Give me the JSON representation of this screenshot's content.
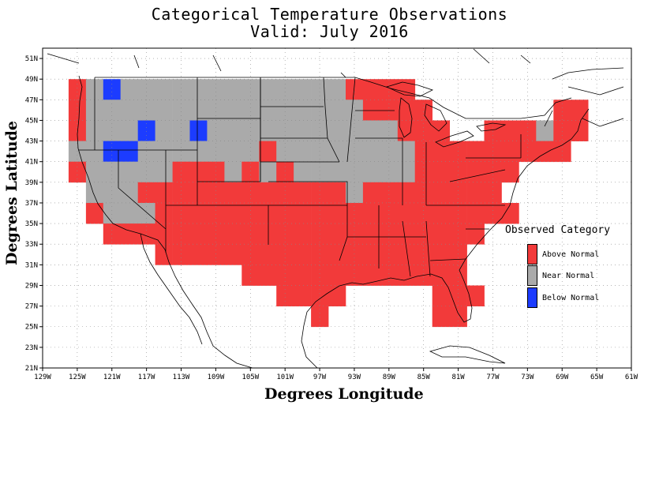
{
  "title": "Categorical Temperature Observations",
  "subtitle": "Valid: July 2016",
  "axes": {
    "xlabel": "Degrees Longitude",
    "ylabel": "Degrees Latitude",
    "lon_ticks": [
      "129W",
      "125W",
      "121W",
      "117W",
      "113W",
      "109W",
      "105W",
      "101W",
      "97W",
      "93W",
      "89W",
      "85W",
      "81W",
      "77W",
      "73W",
      "69W",
      "65W",
      "61W"
    ],
    "lat_ticks": [
      "51N",
      "49N",
      "47N",
      "45N",
      "43N",
      "41N",
      "39N",
      "37N",
      "35N",
      "33N",
      "31N",
      "29N",
      "27N",
      "25N",
      "23N",
      "21N"
    ],
    "lon_range": [
      -129,
      -61
    ],
    "lat_range": [
      21,
      52
    ]
  },
  "legend": {
    "title": "Observed Category",
    "items": [
      {
        "label": "Above Normal",
        "color": "#f23a3a"
      },
      {
        "label": "Near Normal",
        "color": "#aaaaaa"
      },
      {
        "label": "Below Normal",
        "color": "#1c3cff"
      }
    ]
  },
  "chart_data": {
    "type": "heatmap",
    "title": "Categorical Temperature Observations",
    "subtitle": "Valid: July 2016",
    "xlabel": "Degrees Longitude",
    "ylabel": "Degrees Latitude",
    "xlim": [
      -129,
      -61
    ],
    "ylim": [
      21,
      52
    ],
    "grid": true,
    "cell_size_degrees": 2,
    "category_codes": {
      "A": "Above Normal",
      "N": "Near Normal",
      "B": "Below Normal"
    },
    "rows": [
      {
        "lat": 48,
        "cells": [
          [
            -125,
            "A"
          ],
          [
            -123,
            "N"
          ],
          [
            -121,
            "B"
          ],
          [
            -119,
            "N"
          ],
          [
            -117,
            "N"
          ],
          [
            -115,
            "N"
          ],
          [
            -113,
            "N"
          ],
          [
            -111,
            "N"
          ],
          [
            -109,
            "N"
          ],
          [
            -107,
            "N"
          ],
          [
            -105,
            "N"
          ],
          [
            -103,
            "N"
          ],
          [
            -101,
            "N"
          ],
          [
            -99,
            "N"
          ],
          [
            -97,
            "N"
          ],
          [
            -95,
            "N"
          ],
          [
            -93,
            "A"
          ],
          [
            -91,
            "A"
          ],
          [
            -89,
            "A"
          ],
          [
            -87,
            "A"
          ]
        ]
      },
      {
        "lat": 46,
        "cells": [
          [
            -125,
            "A"
          ],
          [
            -123,
            "N"
          ],
          [
            -121,
            "N"
          ],
          [
            -119,
            "N"
          ],
          [
            -117,
            "N"
          ],
          [
            -115,
            "N"
          ],
          [
            -113,
            "N"
          ],
          [
            -111,
            "N"
          ],
          [
            -109,
            "N"
          ],
          [
            -107,
            "N"
          ],
          [
            -105,
            "N"
          ],
          [
            -103,
            "N"
          ],
          [
            -101,
            "N"
          ],
          [
            -99,
            "N"
          ],
          [
            -97,
            "N"
          ],
          [
            -95,
            "N"
          ],
          [
            -93,
            "N"
          ],
          [
            -91,
            "A"
          ],
          [
            -89,
            "A"
          ],
          [
            -87,
            "A"
          ],
          [
            -85,
            "A"
          ],
          [
            -69,
            "A"
          ],
          [
            -67,
            "A"
          ]
        ]
      },
      {
        "lat": 44,
        "cells": [
          [
            -125,
            "A"
          ],
          [
            -123,
            "N"
          ],
          [
            -121,
            "N"
          ],
          [
            -119,
            "N"
          ],
          [
            -117,
            "B"
          ],
          [
            -115,
            "N"
          ],
          [
            -113,
            "N"
          ],
          [
            -111,
            "B"
          ],
          [
            -109,
            "N"
          ],
          [
            -107,
            "N"
          ],
          [
            -105,
            "N"
          ],
          [
            -103,
            "N"
          ],
          [
            -101,
            "N"
          ],
          [
            -99,
            "N"
          ],
          [
            -97,
            "N"
          ],
          [
            -95,
            "N"
          ],
          [
            -93,
            "N"
          ],
          [
            -91,
            "N"
          ],
          [
            -89,
            "N"
          ],
          [
            -87,
            "A"
          ],
          [
            -85,
            "A"
          ],
          [
            -83,
            "A"
          ],
          [
            -77,
            "A"
          ],
          [
            -75,
            "A"
          ],
          [
            -73,
            "A"
          ],
          [
            -71,
            "N"
          ],
          [
            -69,
            "A"
          ],
          [
            -67,
            "A"
          ]
        ]
      },
      {
        "lat": 42,
        "cells": [
          [
            -125,
            "N"
          ],
          [
            -123,
            "N"
          ],
          [
            -121,
            "B"
          ],
          [
            -119,
            "B"
          ],
          [
            -117,
            "N"
          ],
          [
            -115,
            "N"
          ],
          [
            -113,
            "N"
          ],
          [
            -111,
            "N"
          ],
          [
            -109,
            "N"
          ],
          [
            -107,
            "N"
          ],
          [
            -105,
            "N"
          ],
          [
            -103,
            "A"
          ],
          [
            -101,
            "N"
          ],
          [
            -99,
            "N"
          ],
          [
            -97,
            "N"
          ],
          [
            -95,
            "N"
          ],
          [
            -93,
            "N"
          ],
          [
            -91,
            "N"
          ],
          [
            -89,
            "N"
          ],
          [
            -87,
            "N"
          ],
          [
            -85,
            "A"
          ],
          [
            -83,
            "A"
          ],
          [
            -81,
            "A"
          ],
          [
            -79,
            "A"
          ],
          [
            -77,
            "A"
          ],
          [
            -75,
            "A"
          ],
          [
            -73,
            "A"
          ],
          [
            -71,
            "A"
          ],
          [
            -69,
            "A"
          ]
        ]
      },
      {
        "lat": 40,
        "cells": [
          [
            -125,
            "A"
          ],
          [
            -123,
            "N"
          ],
          [
            -121,
            "N"
          ],
          [
            -119,
            "N"
          ],
          [
            -117,
            "N"
          ],
          [
            -115,
            "N"
          ],
          [
            -113,
            "A"
          ],
          [
            -111,
            "A"
          ],
          [
            -109,
            "A"
          ],
          [
            -107,
            "N"
          ],
          [
            -105,
            "A"
          ],
          [
            -103,
            "N"
          ],
          [
            -101,
            "A"
          ],
          [
            -99,
            "N"
          ],
          [
            -97,
            "N"
          ],
          [
            -95,
            "N"
          ],
          [
            -93,
            "N"
          ],
          [
            -91,
            "N"
          ],
          [
            -89,
            "N"
          ],
          [
            -87,
            "N"
          ],
          [
            -85,
            "A"
          ],
          [
            -83,
            "A"
          ],
          [
            -81,
            "A"
          ],
          [
            -79,
            "A"
          ],
          [
            -77,
            "A"
          ],
          [
            -75,
            "A"
          ]
        ]
      },
      {
        "lat": 38,
        "cells": [
          [
            -123,
            "N"
          ],
          [
            -121,
            "N"
          ],
          [
            -119,
            "N"
          ],
          [
            -117,
            "A"
          ],
          [
            -115,
            "A"
          ],
          [
            -113,
            "A"
          ],
          [
            -111,
            "A"
          ],
          [
            -109,
            "A"
          ],
          [
            -107,
            "A"
          ],
          [
            -105,
            "A"
          ],
          [
            -103,
            "A"
          ],
          [
            -101,
            "A"
          ],
          [
            -99,
            "A"
          ],
          [
            -97,
            "A"
          ],
          [
            -95,
            "A"
          ],
          [
            -93,
            "N"
          ],
          [
            -91,
            "A"
          ],
          [
            -89,
            "A"
          ],
          [
            -87,
            "A"
          ],
          [
            -85,
            "A"
          ],
          [
            -83,
            "A"
          ],
          [
            -81,
            "A"
          ],
          [
            -79,
            "A"
          ],
          [
            -77,
            "A"
          ]
        ]
      },
      {
        "lat": 36,
        "cells": [
          [
            -123,
            "A"
          ],
          [
            -121,
            "N"
          ],
          [
            -119,
            "N"
          ],
          [
            -117,
            "N"
          ],
          [
            -115,
            "A"
          ],
          [
            -113,
            "A"
          ],
          [
            -111,
            "A"
          ],
          [
            -109,
            "A"
          ],
          [
            -107,
            "A"
          ],
          [
            -105,
            "A"
          ],
          [
            -103,
            "A"
          ],
          [
            -101,
            "A"
          ],
          [
            -99,
            "A"
          ],
          [
            -97,
            "A"
          ],
          [
            -95,
            "A"
          ],
          [
            -93,
            "A"
          ],
          [
            -91,
            "A"
          ],
          [
            -89,
            "A"
          ],
          [
            -87,
            "A"
          ],
          [
            -85,
            "A"
          ],
          [
            -83,
            "A"
          ],
          [
            -81,
            "A"
          ],
          [
            -79,
            "A"
          ],
          [
            -77,
            "A"
          ],
          [
            -75,
            "A"
          ]
        ]
      },
      {
        "lat": 34,
        "cells": [
          [
            -121,
            "A"
          ],
          [
            -119,
            "A"
          ],
          [
            -117,
            "A"
          ],
          [
            -115,
            "A"
          ],
          [
            -113,
            "A"
          ],
          [
            -111,
            "A"
          ],
          [
            -109,
            "A"
          ],
          [
            -107,
            "A"
          ],
          [
            -105,
            "A"
          ],
          [
            -103,
            "A"
          ],
          [
            -101,
            "A"
          ],
          [
            -99,
            "A"
          ],
          [
            -97,
            "A"
          ],
          [
            -95,
            "A"
          ],
          [
            -93,
            "A"
          ],
          [
            -91,
            "A"
          ],
          [
            -89,
            "A"
          ],
          [
            -87,
            "A"
          ],
          [
            -85,
            "A"
          ],
          [
            -83,
            "A"
          ],
          [
            -81,
            "A"
          ],
          [
            -79,
            "A"
          ]
        ]
      },
      {
        "lat": 32,
        "cells": [
          [
            -115,
            "A"
          ],
          [
            -113,
            "A"
          ],
          [
            -111,
            "A"
          ],
          [
            -109,
            "A"
          ],
          [
            -107,
            "A"
          ],
          [
            -105,
            "A"
          ],
          [
            -103,
            "A"
          ],
          [
            -101,
            "A"
          ],
          [
            -99,
            "A"
          ],
          [
            -97,
            "A"
          ],
          [
            -95,
            "A"
          ],
          [
            -93,
            "A"
          ],
          [
            -91,
            "A"
          ],
          [
            -89,
            "A"
          ],
          [
            -87,
            "A"
          ],
          [
            -85,
            "A"
          ],
          [
            -83,
            "A"
          ],
          [
            -81,
            "A"
          ]
        ]
      },
      {
        "lat": 30,
        "cells": [
          [
            -105,
            "A"
          ],
          [
            -103,
            "A"
          ],
          [
            -101,
            "A"
          ],
          [
            -99,
            "A"
          ],
          [
            -97,
            "A"
          ],
          [
            -95,
            "A"
          ],
          [
            -93,
            "A"
          ],
          [
            -91,
            "A"
          ],
          [
            -89,
            "A"
          ],
          [
            -87,
            "A"
          ],
          [
            -85,
            "A"
          ],
          [
            -83,
            "A"
          ],
          [
            -81,
            "A"
          ]
        ]
      },
      {
        "lat": 28,
        "cells": [
          [
            -101,
            "A"
          ],
          [
            -99,
            "A"
          ],
          [
            -97,
            "A"
          ],
          [
            -95,
            "A"
          ],
          [
            -83,
            "A"
          ],
          [
            -81,
            "A"
          ],
          [
            -79,
            "A"
          ]
        ]
      },
      {
        "lat": 26,
        "cells": [
          [
            -97,
            "A"
          ],
          [
            -83,
            "A"
          ],
          [
            -81,
            "A"
          ]
        ]
      }
    ]
  }
}
